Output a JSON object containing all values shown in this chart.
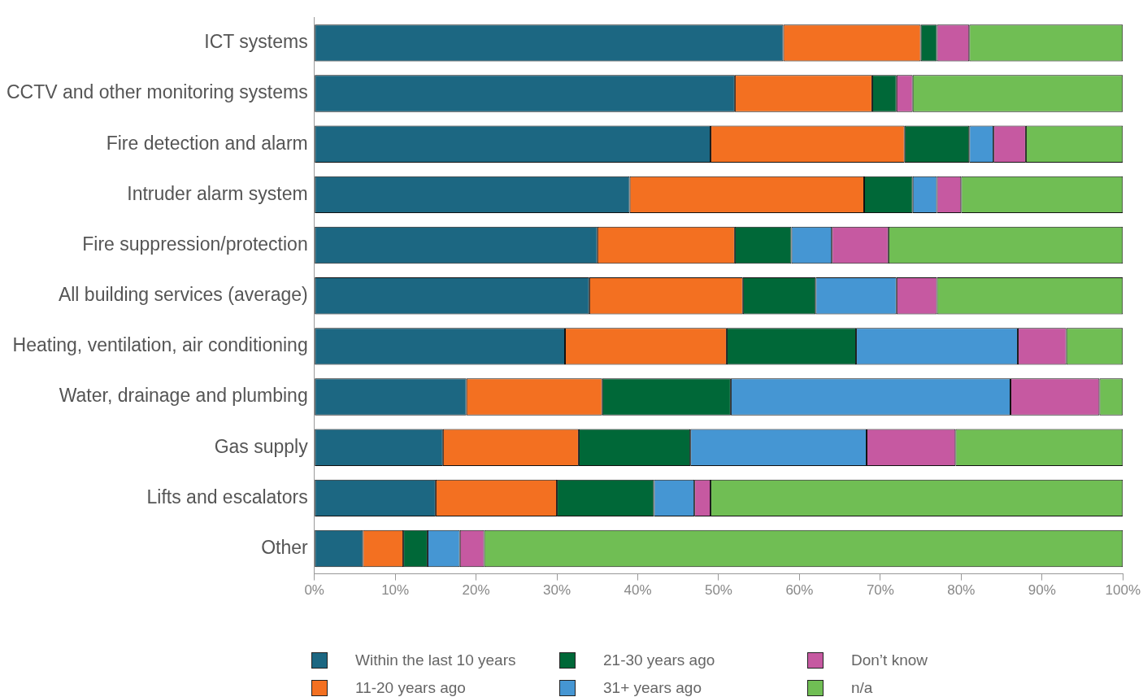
{
  "chart_data": {
    "type": "bar",
    "orientation": "horizontal",
    "stacked": true,
    "categories": [
      "ICT systems",
      "CCTV and other monitoring systems",
      "Fire detection and alarm",
      "Intruder alarm system",
      "Fire suppression/protection",
      "All building services (average)",
      "Heating, ventilation, air conditioning",
      "Water, drainage and plumbing",
      "Gas supply",
      "Lifts and escalators",
      "Other"
    ],
    "series": [
      {
        "name": "Within the last 10 years",
        "color": "#1c6782",
        "values": [
          58,
          52,
          49,
          39,
          35,
          34,
          31,
          18.8,
          15.9,
          15,
          6
        ]
      },
      {
        "name": "11-20 years ago",
        "color": "#f37021",
        "values": [
          17,
          17,
          24,
          29,
          17,
          19,
          20,
          16.8,
          16.8,
          15,
          5
        ]
      },
      {
        "name": "21-30 years ago",
        "color": "#006838",
        "values": [
          2,
          3,
          8,
          6,
          7,
          9,
          16,
          15.9,
          13.8,
          12,
          3
        ]
      },
      {
        "name": "31+ years ago",
        "color": "#4596d3",
        "values": [
          0,
          0,
          3,
          3,
          5,
          10,
          20,
          34.6,
          21.8,
          5,
          4
        ]
      },
      {
        "name": "Don’t know",
        "color": "#c659a1",
        "values": [
          4,
          2,
          4,
          3,
          7,
          5,
          6,
          11,
          11,
          2,
          3
        ]
      },
      {
        "name": "n/a",
        "color": "#70be54",
        "values": [
          19,
          26,
          12,
          20,
          29,
          23,
          7,
          2.9,
          20.7,
          51,
          79
        ]
      }
    ],
    "xlim": [
      0,
      100
    ],
    "xticks": [
      {
        "value": 0,
        "label": "0%"
      },
      {
        "value": 10,
        "label": "10%"
      },
      {
        "value": 20,
        "label": "20%"
      },
      {
        "value": 30,
        "label": "30%"
      },
      {
        "value": 40,
        "label": "40%"
      },
      {
        "value": 50,
        "label": "50%"
      },
      {
        "value": 60,
        "label": "60%"
      },
      {
        "value": 70,
        "label": "70%"
      },
      {
        "value": 80,
        "label": "80%"
      },
      {
        "value": 90,
        "label": "90%"
      },
      {
        "value": 100,
        "label": "100%"
      }
    ],
    "grid": false,
    "legend": "bottom"
  }
}
